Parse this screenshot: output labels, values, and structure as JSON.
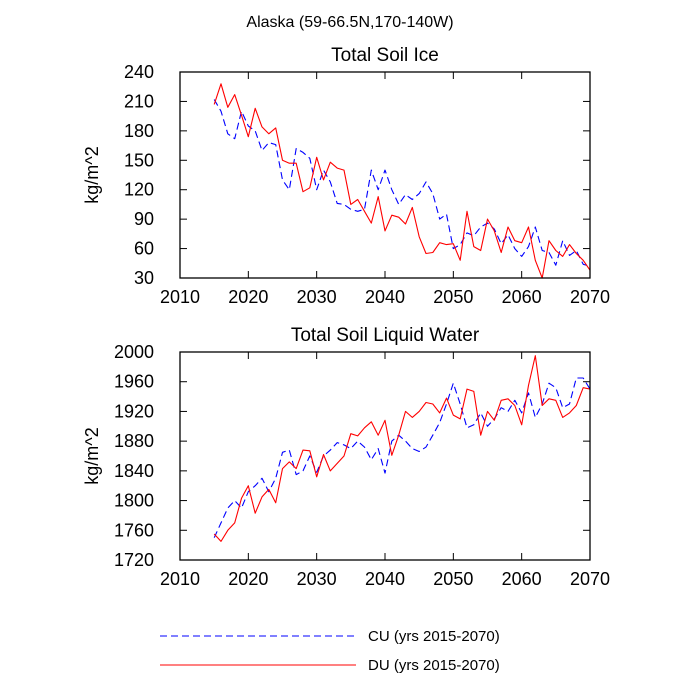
{
  "figure": {
    "suptitle": "Alaska (59-66.5N,170-140W)"
  },
  "colors": {
    "cu": "#0000ff",
    "du": "#ff0000"
  },
  "legend": {
    "items": [
      {
        "label": "CU (yrs 2015-2070)",
        "color": "#0000ff",
        "style": "dashed"
      },
      {
        "label": "DU (yrs 2015-2070)",
        "color": "#ff0000",
        "style": "solid"
      }
    ]
  },
  "chart_data": [
    {
      "type": "line",
      "title": "Total Soil Ice",
      "xlabel": "",
      "ylabel": "kg/m^2",
      "xlim": [
        2010,
        2070
      ],
      "ylim": [
        30,
        240
      ],
      "xticks": [
        2010,
        2020,
        2030,
        2040,
        2050,
        2060,
        2070
      ],
      "yticks": [
        30,
        60,
        90,
        120,
        150,
        180,
        210,
        240
      ],
      "grid": false,
      "x": [
        2015,
        2016,
        2017,
        2018,
        2019,
        2020,
        2021,
        2022,
        2023,
        2024,
        2025,
        2026,
        2027,
        2028,
        2029,
        2030,
        2031,
        2032,
        2033,
        2034,
        2035,
        2036,
        2037,
        2038,
        2039,
        2040,
        2041,
        2042,
        2043,
        2044,
        2045,
        2046,
        2047,
        2048,
        2049,
        2050,
        2051,
        2052,
        2053,
        2054,
        2055,
        2056,
        2057,
        2058,
        2059,
        2060,
        2061,
        2062,
        2063,
        2064,
        2065,
        2066,
        2067,
        2068,
        2069,
        2070
      ],
      "series": [
        {
          "name": "CU (yrs 2015-2070)",
          "style": "dashed",
          "values": [
            212,
            200,
            177,
            172,
            200,
            185,
            180,
            160,
            168,
            166,
            130,
            120,
            162,
            158,
            152,
            120,
            140,
            128,
            106,
            105,
            100,
            98,
            100,
            140,
            120,
            140,
            120,
            105,
            115,
            110,
            116,
            128,
            116,
            90,
            95,
            60,
            64,
            76,
            73,
            82,
            86,
            80,
            65,
            74,
            60,
            52,
            62,
            82,
            58,
            56,
            43,
            68,
            53,
            58,
            44,
            42
          ]
        },
        {
          "name": "DU (yrs 2015-2070)",
          "style": "solid",
          "values": [
            207,
            228,
            204,
            217,
            196,
            174,
            203,
            184,
            177,
            183,
            150,
            147,
            147,
            118,
            122,
            153,
            130,
            148,
            142,
            140,
            105,
            110,
            98,
            86,
            113,
            78,
            94,
            92,
            85,
            102,
            72,
            55,
            56,
            66,
            64,
            65,
            48,
            98,
            62,
            58,
            90,
            78,
            56,
            82,
            68,
            66,
            82,
            48,
            30,
            68,
            58,
            52,
            64,
            55,
            48,
            38
          ]
        }
      ]
    },
    {
      "type": "line",
      "title": "Total Soil Liquid Water",
      "xlabel": "",
      "ylabel": "kg/m^2",
      "xlim": [
        2010,
        2070
      ],
      "ylim": [
        1720,
        2000
      ],
      "xticks": [
        2010,
        2020,
        2030,
        2040,
        2050,
        2060,
        2070
      ],
      "yticks": [
        1720,
        1760,
        1800,
        1840,
        1880,
        1920,
        1960,
        2000
      ],
      "grid": false,
      "x": [
        2015,
        2016,
        2017,
        2018,
        2019,
        2020,
        2021,
        2022,
        2023,
        2024,
        2025,
        2026,
        2027,
        2028,
        2029,
        2030,
        2031,
        2032,
        2033,
        2034,
        2035,
        2036,
        2037,
        2038,
        2039,
        2040,
        2041,
        2042,
        2043,
        2044,
        2045,
        2046,
        2047,
        2048,
        2049,
        2050,
        2051,
        2052,
        2053,
        2054,
        2055,
        2056,
        2057,
        2058,
        2059,
        2060,
        2061,
        2062,
        2063,
        2064,
        2065,
        2066,
        2067,
        2068,
        2069,
        2070
      ],
      "series": [
        {
          "name": "CU (yrs 2015-2070)",
          "style": "dashed",
          "values": [
            1750,
            1770,
            1790,
            1800,
            1790,
            1812,
            1820,
            1830,
            1812,
            1830,
            1865,
            1868,
            1835,
            1840,
            1860,
            1838,
            1860,
            1868,
            1878,
            1875,
            1870,
            1880,
            1872,
            1855,
            1870,
            1837,
            1880,
            1888,
            1880,
            1870,
            1866,
            1872,
            1888,
            1905,
            1930,
            1958,
            1930,
            1898,
            1902,
            1918,
            1900,
            1910,
            1925,
            1920,
            1935,
            1918,
            1945,
            1912,
            1930,
            1958,
            1952,
            1925,
            1930,
            1965,
            1965,
            1950
          ]
        },
        {
          "name": "DU (yrs 2015-2070)",
          "style": "solid",
          "values": [
            1755,
            1745,
            1760,
            1770,
            1803,
            1820,
            1783,
            1805,
            1815,
            1797,
            1843,
            1852,
            1843,
            1868,
            1867,
            1832,
            1862,
            1840,
            1850,
            1860,
            1890,
            1887,
            1898,
            1906,
            1888,
            1908,
            1861,
            1888,
            1920,
            1912,
            1920,
            1932,
            1930,
            1918,
            1938,
            1915,
            1910,
            1950,
            1947,
            1888,
            1920,
            1908,
            1935,
            1937,
            1928,
            1902,
            1955,
            1995,
            1928,
            1937,
            1935,
            1912,
            1918,
            1928,
            1952,
            1950
          ]
        }
      ]
    }
  ]
}
